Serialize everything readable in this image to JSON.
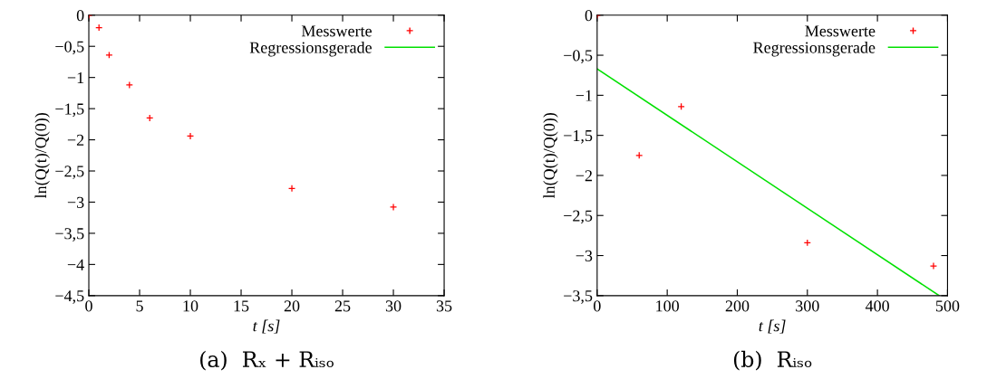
{
  "chart_data": [
    {
      "type": "scatter",
      "title": "(a)  Rₓ + Rᵢₛₒ",
      "xlabel": "t [s]",
      "ylabel": "ln(Q(t)/Q(0))",
      "legend": "top right",
      "grid": false,
      "series": [
        {
          "name": "Messwerte",
          "marker": "cross",
          "color": "#ff0000",
          "x": [
            0,
            1,
            2,
            4,
            6,
            10,
            20,
            30
          ],
          "values": [
            0,
            -0.2,
            -0.64,
            -1.12,
            -1.65,
            -1.94,
            -2.78,
            -3.08
          ]
        },
        {
          "name": "Regressionsgerade",
          "type": "line",
          "color": "#00e000"
        }
      ],
      "xlim": [
        0,
        35
      ],
      "xticks": [
        0,
        5,
        10,
        15,
        20,
        25,
        30,
        35
      ],
      "ylim": [
        -4.5,
        0
      ],
      "yticks": [
        {
          "value": -4.5,
          "label": "−4,5"
        },
        {
          "value": -4,
          "label": "−4"
        },
        {
          "value": -3.5,
          "label": "−3,5"
        },
        {
          "value": -3,
          "label": "−3"
        },
        {
          "value": -2.5,
          "label": "−2,5"
        },
        {
          "value": -2,
          "label": "−2"
        },
        {
          "value": -1.5,
          "label": "−1,5"
        },
        {
          "value": -1,
          "label": "−1"
        },
        {
          "value": -0.5,
          "label": "−0,5"
        },
        0
      ]
    },
    {
      "type": "scatter",
      "title": "(b)  Rᵢₛₒ",
      "xlabel": "t [s]",
      "ylabel": "ln(Q(t)/Q(0))",
      "legend": "top right",
      "grid": false,
      "series": [
        {
          "name": "Messwerte",
          "marker": "cross",
          "color": "#ff0000",
          "x": [
            0,
            60,
            120,
            300,
            480
          ],
          "values": [
            0,
            -1.75,
            -1.14,
            -2.84,
            -3.13
          ]
        },
        {
          "name": "Regressionsgerade",
          "type": "line",
          "color": "#00e000",
          "x": [
            0,
            488
          ],
          "values": [
            -0.67,
            -3.5
          ]
        }
      ],
      "xlim": [
        0,
        500
      ],
      "xticks": [
        0,
        100,
        200,
        300,
        400,
        500
      ],
      "ylim": [
        -3.5,
        0
      ],
      "yticks": [
        {
          "value": -3.5,
          "label": "−3,5"
        },
        {
          "value": -3,
          "label": "−3"
        },
        {
          "value": -2.5,
          "label": "−2,5"
        },
        {
          "value": -2,
          "label": "−2"
        },
        {
          "value": -1.5,
          "label": "−1,5"
        },
        {
          "value": -1,
          "label": "−1"
        },
        {
          "value": -0.5,
          "label": "−0,5"
        },
        0
      ]
    }
  ]
}
